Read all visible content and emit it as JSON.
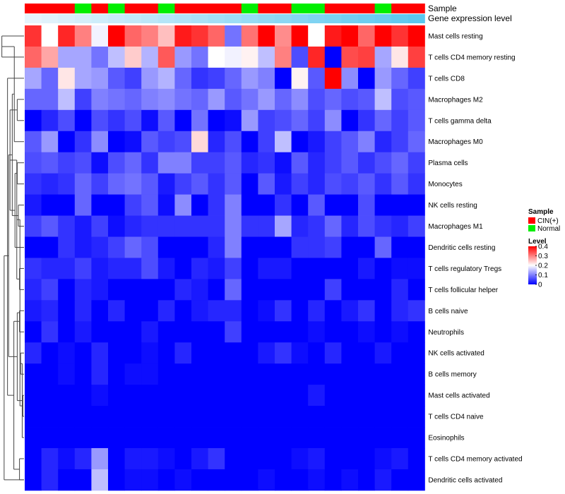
{
  "chart_data": {
    "type": "heatmap",
    "annotation_tracks": {
      "sample_label": "Sample",
      "expression_label": "Gene expression level"
    },
    "sample_groups": [
      "CIN(+)",
      "CIN(+)",
      "CIN(+)",
      "Normal",
      "CIN(+)",
      "Normal",
      "CIN(+)",
      "CIN(+)",
      "Normal",
      "CIN(+)",
      "CIN(+)",
      "CIN(+)",
      "CIN(+)",
      "Normal",
      "CIN(+)",
      "CIN(+)",
      "Normal",
      "Normal",
      "CIN(+)",
      "CIN(+)",
      "CIN(+)",
      "Normal",
      "CIN(+)",
      "CIN(+)"
    ],
    "expression_levels": [
      0.0,
      0.04,
      0.09,
      0.13,
      0.17,
      0.22,
      0.26,
      0.3,
      0.35,
      0.39,
      0.43,
      0.48,
      0.52,
      0.57,
      0.61,
      0.65,
      0.7,
      0.74,
      0.78,
      0.83,
      0.87,
      0.91,
      0.96,
      1.0
    ],
    "rows": [
      "Mast cells resting",
      "T cells CD4 memory resting",
      "T cells CD8",
      "Macrophages M2",
      "T cells gamma delta",
      "Macrophages M0",
      "Plasma cells",
      "Monocytes",
      "NK cells resting",
      "Macrophages M1",
      "Dendritic cells resting",
      "T cells regulatory  Tregs",
      "T cells follicular helper",
      "B cells naive",
      "Neutrophils",
      "NK cells activated",
      "B cells memory",
      "Mast cells activated",
      "T cells CD4 naive",
      "Eosinophils",
      "T cells CD4 memory activated",
      "Dendritic cells activated"
    ],
    "values": [
      [
        0.36,
        0.2,
        0.37,
        0.3,
        0.19,
        0.4,
        0.32,
        0.3,
        0.25,
        0.38,
        0.36,
        0.32,
        0.09,
        0.31,
        0.4,
        0.29,
        0.4,
        0.2,
        0.38,
        0.4,
        0.32,
        0.4,
        0.36,
        0.4
      ],
      [
        0.32,
        0.27,
        0.13,
        0.13,
        0.09,
        0.15,
        0.24,
        0.14,
        0.33,
        0.12,
        0.09,
        0.2,
        0.19,
        0.21,
        0.15,
        0.3,
        0.06,
        0.37,
        0.0,
        0.34,
        0.35,
        0.13,
        0.22,
        0.35
      ],
      [
        0.13,
        0.08,
        0.22,
        0.13,
        0.12,
        0.07,
        0.05,
        0.12,
        0.14,
        0.08,
        0.04,
        0.05,
        0.08,
        0.12,
        0.1,
        0.0,
        0.21,
        0.07,
        0.4,
        0.11,
        0.0,
        0.12,
        0.08,
        0.05
      ],
      [
        0.08,
        0.08,
        0.15,
        0.05,
        0.1,
        0.09,
        0.08,
        0.1,
        0.11,
        0.09,
        0.08,
        0.12,
        0.07,
        0.09,
        0.12,
        0.08,
        0.11,
        0.06,
        0.08,
        0.06,
        0.07,
        0.15,
        0.06,
        0.07
      ],
      [
        0.0,
        0.03,
        0.06,
        0.0,
        0.06,
        0.04,
        0.06,
        0.01,
        0.07,
        0.0,
        0.09,
        0.0,
        0.01,
        0.12,
        0.05,
        0.06,
        0.08,
        0.05,
        0.11,
        0.0,
        0.04,
        0.08,
        0.05,
        0.07
      ],
      [
        0.07,
        0.12,
        0.0,
        0.04,
        0.11,
        0.0,
        0.01,
        0.07,
        0.05,
        0.06,
        0.23,
        0.03,
        0.06,
        0.0,
        0.05,
        0.15,
        0.0,
        0.02,
        0.05,
        0.07,
        0.1,
        0.03,
        0.05,
        0.08
      ],
      [
        0.06,
        0.07,
        0.05,
        0.06,
        0.01,
        0.06,
        0.08,
        0.04,
        0.1,
        0.1,
        0.05,
        0.05,
        0.07,
        0.03,
        0.04,
        0.01,
        0.07,
        0.03,
        0.05,
        0.07,
        0.04,
        0.06,
        0.08,
        0.05
      ],
      [
        0.04,
        0.03,
        0.04,
        0.08,
        0.05,
        0.08,
        0.09,
        0.07,
        0.02,
        0.05,
        0.07,
        0.04,
        0.07,
        0.0,
        0.07,
        0.02,
        0.05,
        0.03,
        0.06,
        0.05,
        0.07,
        0.04,
        0.07,
        0.04
      ],
      [
        0.02,
        0.0,
        0.0,
        0.08,
        0.0,
        0.0,
        0.05,
        0.07,
        0.01,
        0.11,
        0.0,
        0.04,
        0.1,
        0.0,
        0.0,
        0.04,
        0.0,
        0.07,
        0.0,
        0.0,
        0.06,
        0.0,
        0.0,
        0.0
      ],
      [
        0.05,
        0.07,
        0.04,
        0.02,
        0.05,
        0.01,
        0.03,
        0.04,
        0.04,
        0.04,
        0.04,
        0.04,
        0.1,
        0.04,
        0.04,
        0.13,
        0.03,
        0.04,
        0.08,
        0.03,
        0.06,
        0.04,
        0.03,
        0.05
      ],
      [
        0.0,
        0.0,
        0.04,
        0.02,
        0.03,
        0.05,
        0.08,
        0.06,
        0.0,
        0.0,
        0.0,
        0.03,
        0.1,
        0.0,
        0.0,
        0.0,
        0.04,
        0.04,
        0.05,
        0.0,
        0.0,
        0.08,
        0.0,
        0.0
      ],
      [
        0.04,
        0.03,
        0.03,
        0.05,
        0.02,
        0.03,
        0.03,
        0.06,
        0.02,
        0.0,
        0.03,
        0.02,
        0.05,
        0.0,
        0.02,
        0.02,
        0.0,
        0.0,
        0.0,
        0.0,
        0.02,
        0.0,
        0.01,
        0.01
      ],
      [
        0.03,
        0.05,
        0.0,
        0.03,
        0.02,
        0.0,
        0.0,
        0.0,
        0.0,
        0.03,
        0.02,
        0.0,
        0.08,
        0.0,
        0.0,
        0.0,
        0.0,
        0.0,
        0.05,
        0.0,
        0.0,
        0.0,
        0.03,
        0.0
      ],
      [
        0.02,
        0.03,
        0.0,
        0.03,
        0.0,
        0.03,
        0.0,
        0.0,
        0.03,
        0.0,
        0.02,
        0.03,
        0.03,
        0.0,
        0.01,
        0.04,
        0.0,
        0.03,
        0.0,
        0.02,
        0.04,
        0.0,
        0.03,
        0.04
      ],
      [
        0.0,
        0.04,
        0.0,
        0.02,
        0.0,
        0.0,
        0.0,
        0.02,
        0.0,
        0.0,
        0.0,
        0.0,
        0.05,
        0.0,
        0.0,
        0.0,
        0.0,
        0.01,
        0.0,
        0.0,
        0.01,
        0.0,
        0.01,
        0.0
      ],
      [
        0.03,
        0.0,
        0.01,
        0.0,
        0.03,
        0.0,
        0.0,
        0.01,
        0.0,
        0.03,
        0.0,
        0.0,
        0.0,
        0.0,
        0.02,
        0.04,
        0.01,
        0.0,
        0.03,
        0.0,
        0.0,
        0.02,
        0.0,
        0.0
      ],
      [
        0.0,
        0.0,
        0.01,
        0.0,
        0.03,
        0.0,
        0.01,
        0.01,
        0.0,
        0.0,
        0.0,
        0.0,
        0.0,
        0.0,
        0.0,
        0.0,
        0.0,
        0.0,
        0.0,
        0.0,
        0.0,
        0.0,
        0.0,
        0.0
      ],
      [
        0.0,
        0.0,
        0.0,
        0.0,
        0.01,
        0.0,
        0.0,
        0.0,
        0.0,
        0.0,
        0.0,
        0.0,
        0.0,
        0.0,
        0.0,
        0.0,
        0.0,
        0.02,
        0.0,
        0.0,
        0.0,
        0.0,
        0.0,
        0.0
      ],
      [
        0.0,
        0.0,
        0.0,
        0.0,
        0.0,
        0.0,
        0.0,
        0.0,
        0.0,
        0.0,
        0.0,
        0.0,
        0.0,
        0.0,
        0.0,
        0.0,
        0.0,
        0.0,
        0.0,
        0.0,
        0.0,
        0.0,
        0.0,
        0.0
      ],
      [
        0.0,
        0.0,
        0.0,
        0.0,
        0.0,
        0.0,
        0.0,
        0.0,
        0.0,
        0.0,
        0.0,
        0.0,
        0.0,
        0.0,
        0.0,
        0.0,
        0.0,
        0.0,
        0.0,
        0.0,
        0.0,
        0.0,
        0.0,
        0.0
      ],
      [
        0.0,
        0.03,
        0.01,
        0.03,
        0.12,
        0.0,
        0.02,
        0.02,
        0.01,
        0.0,
        0.02,
        0.04,
        0.0,
        0.0,
        0.0,
        0.0,
        0.01,
        0.02,
        0.0,
        0.0,
        0.0,
        0.01,
        0.02,
        0.0
      ],
      [
        0.0,
        0.03,
        0.0,
        0.0,
        0.15,
        0.0,
        0.01,
        0.01,
        0.0,
        0.01,
        0.0,
        0.0,
        0.0,
        0.0,
        0.01,
        0.0,
        0.0,
        0.01,
        0.0,
        0.01,
        0.0,
        0.02,
        0.0,
        0.0
      ]
    ],
    "row_dendrogram": [
      [
        0,
        1,
        0.98
      ],
      [
        3,
        4,
        0.3
      ],
      [
        22,
        5,
        0.43
      ],
      [
        6,
        7,
        0.3
      ],
      [
        8,
        9,
        0.25
      ],
      [
        25,
        10,
        0.4
      ],
      [
        24,
        26,
        0.52
      ],
      [
        23,
        27,
        0.62
      ],
      [
        11,
        12,
        0.2
      ],
      [
        13,
        14,
        0.2
      ],
      [
        29,
        30,
        0.32
      ],
      [
        15,
        16,
        0.15
      ],
      [
        17,
        18,
        0.05
      ],
      [
        33,
        19,
        0.08
      ],
      [
        32,
        34,
        0.18
      ],
      [
        20,
        21,
        0.2
      ],
      [
        35,
        36,
        0.3
      ],
      [
        31,
        37,
        0.45
      ],
      [
        28,
        38,
        0.68
      ],
      [
        2,
        39,
        0.73
      ],
      [
        21,
        40,
        0.88
      ]
    ],
    "legend": {
      "sample_title": "Sample",
      "sample_items": [
        {
          "label": "CIN(+)",
          "color": "#ff0000"
        },
        {
          "label": "Normal",
          "color": "#00ee00"
        }
      ],
      "level_title": "Level",
      "level_ticks": [
        0.4,
        0.3,
        0.2,
        0.1,
        0
      ],
      "range": [
        0,
        0.4
      ]
    },
    "colors": {
      "low": "#0000ff",
      "mid": "#ffffff",
      "high": "#ff0000",
      "expr_low": "#e6f4fc",
      "expr_high": "#5bc8ef",
      "tree": "#444444"
    }
  }
}
